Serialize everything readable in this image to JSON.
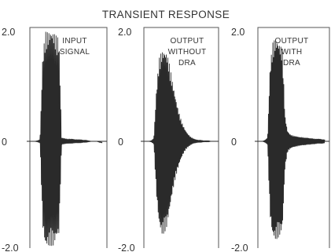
{
  "chart_data": [
    {
      "type": "line",
      "title": "TRANSIENT RESPONSE",
      "panel_label": [
        "INPUT",
        "SIGNAL"
      ],
      "ytick_labels": [
        "2.0",
        "0",
        "-2.0"
      ],
      "ylim": [
        -2.0,
        2.0
      ],
      "xlim": [
        0,
        1
      ],
      "grid": false,
      "series": [
        {
          "x": [
            0.0,
            0.04,
            0.08,
            0.12,
            0.16,
            0.2,
            0.24,
            0.28,
            0.32,
            0.36,
            0.4,
            0.44,
            0.48,
            0.52,
            0.56,
            0.6,
            0.64,
            0.68,
            0.72,
            0.76,
            0.8,
            0.84,
            0.88,
            0.92,
            0.96,
            1.0
          ],
          "y": [
            0.0,
            0.01,
            0.03,
            1.5,
            1.92,
            1.92,
            1.95,
            1.92,
            1.85,
            1.8,
            0.06,
            0.05,
            0.04,
            0.04,
            0.04,
            0.03,
            0.03,
            0.03,
            0.02,
            0.02,
            0.01,
            0.0,
            0.0,
            0.0,
            -0.01,
            -0.02
          ]
        },
        {
          "x": [
            0.0,
            0.04,
            0.08,
            0.12,
            0.16,
            0.2,
            0.24,
            0.28,
            0.32,
            0.36,
            0.4,
            0.44,
            0.48,
            0.52,
            0.56,
            0.6,
            0.64,
            0.68,
            0.72,
            0.76,
            0.8,
            0.84,
            0.88,
            0.92,
            0.96,
            1.0
          ],
          "y": [
            0.0,
            -0.01,
            -0.03,
            -1.6,
            -1.98,
            -1.97,
            -1.95,
            -1.96,
            -1.82,
            -1.75,
            -0.06,
            -0.05,
            -0.04,
            -0.04,
            -0.04,
            -0.03,
            -0.03,
            -0.03,
            -0.02,
            -0.02,
            -0.01,
            0.0,
            0.0,
            0.0,
            -0.02,
            -0.03
          ]
        }
      ]
    },
    {
      "type": "line",
      "panel_label": [
        "OUTPUT",
        "WITHOUT",
        "DRA"
      ],
      "ytick_labels": [
        "2.0",
        "0",
        "-2.0"
      ],
      "ylim": [
        -2.0,
        2.0
      ],
      "xlim": [
        0,
        1
      ],
      "grid": false,
      "series": [
        {
          "x": [
            0.0,
            0.04,
            0.08,
            0.12,
            0.16,
            0.2,
            0.24,
            0.28,
            0.32,
            0.36,
            0.4,
            0.44,
            0.48,
            0.52,
            0.56,
            0.6,
            0.64,
            0.68,
            0.72,
            0.76,
            0.8,
            0.84,
            0.88,
            0.92,
            0.96,
            1.0
          ],
          "y": [
            0.0,
            0.01,
            0.05,
            0.9,
            1.45,
            1.58,
            1.6,
            1.55,
            1.35,
            1.08,
            0.84,
            0.62,
            0.44,
            0.3,
            0.2,
            0.13,
            0.08,
            0.05,
            0.03,
            0.02,
            0.02,
            0.01,
            0.01,
            0.01,
            0.0,
            0.0
          ]
        },
        {
          "x": [
            0.0,
            0.04,
            0.08,
            0.12,
            0.16,
            0.2,
            0.24,
            0.28,
            0.32,
            0.36,
            0.4,
            0.44,
            0.48,
            0.52,
            0.56,
            0.6,
            0.64,
            0.68,
            0.72,
            0.76,
            0.8,
            0.84,
            0.88,
            0.92,
            0.96,
            1.0
          ],
          "y": [
            0.0,
            -0.01,
            -0.05,
            -1.0,
            -1.55,
            -1.75,
            -1.72,
            -1.6,
            -1.3,
            -1.0,
            -0.75,
            -0.55,
            -0.38,
            -0.26,
            -0.17,
            -0.11,
            -0.07,
            -0.04,
            -0.03,
            -0.02,
            -0.02,
            -0.01,
            -0.01,
            -0.01,
            0.0,
            0.0
          ]
        }
      ]
    },
    {
      "type": "line",
      "panel_label": [
        "OUTPUT",
        "WITH",
        "DRA"
      ],
      "ytick_labels": [
        "2.0",
        "0",
        "-2.0"
      ],
      "ylim": [
        -2.0,
        2.0
      ],
      "xlim": [
        0,
        1
      ],
      "grid": false,
      "series": [
        {
          "x": [
            0.0,
            0.04,
            0.08,
            0.12,
            0.16,
            0.2,
            0.24,
            0.28,
            0.32,
            0.36,
            0.4,
            0.44,
            0.48,
            0.52,
            0.56,
            0.6,
            0.64,
            0.68,
            0.72,
            0.76,
            0.8,
            0.84,
            0.88,
            0.92,
            0.96,
            1.0
          ],
          "y": [
            0.0,
            0.02,
            0.06,
            1.3,
            1.72,
            1.8,
            1.78,
            1.7,
            1.62,
            0.45,
            0.18,
            0.12,
            0.1,
            0.09,
            0.08,
            0.07,
            0.07,
            0.06,
            0.06,
            0.05,
            0.05,
            0.04,
            0.04,
            0.04,
            0.03,
            0.03
          ]
        },
        {
          "x": [
            0.0,
            0.04,
            0.08,
            0.12,
            0.16,
            0.2,
            0.24,
            0.28,
            0.32,
            0.36,
            0.4,
            0.44,
            0.48,
            0.52,
            0.56,
            0.6,
            0.64,
            0.68,
            0.72,
            0.76,
            0.8,
            0.84,
            0.88,
            0.92,
            0.96,
            1.0
          ],
          "y": [
            0.0,
            -0.02,
            -0.06,
            -1.4,
            -1.78,
            -1.85,
            -1.82,
            -1.75,
            -1.65,
            -0.5,
            -0.2,
            -0.14,
            -0.11,
            -0.1,
            -0.09,
            -0.08,
            -0.07,
            -0.07,
            -0.06,
            -0.06,
            -0.05,
            -0.05,
            -0.04,
            -0.04,
            -0.04,
            -0.03
          ]
        }
      ]
    }
  ],
  "colors": {
    "trace": "#2a2a2a",
    "axis": "#555555",
    "text": "#333333",
    "background": "#ffffff"
  }
}
